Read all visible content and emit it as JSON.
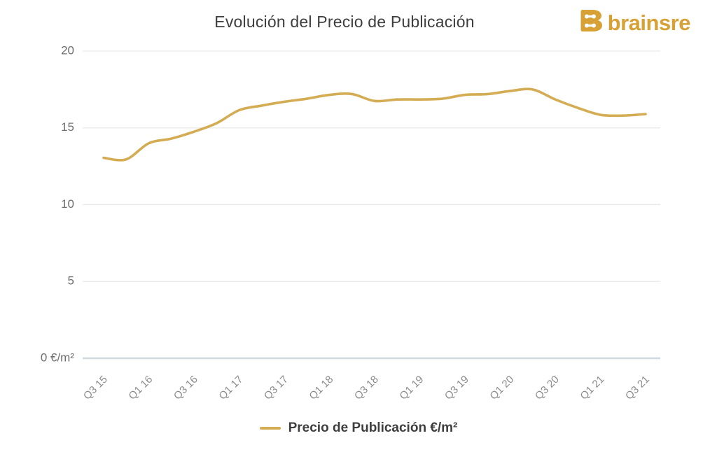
{
  "header": {
    "title": "Evolución del Precio de Publicación",
    "logo": {
      "text": "brainsre",
      "color": "#d7a136",
      "icon": "brainsre-block-b-icon"
    }
  },
  "legend": {
    "label": "Precio de Publicación €/m²",
    "marker_color": "#d3ac54"
  },
  "colors": {
    "line": "#d3ac54",
    "grid": "#e9e9e9",
    "axis_zero": "#cfd9df",
    "y_tick_text": "#6f6f6f",
    "x_tick_text": "#8b8b8b",
    "title_text": "#3e3e3e",
    "brand_gold": "#d7a136"
  },
  "chart_data": {
    "type": "line",
    "title": "Evolución del Precio de Publicación",
    "x": [
      "Q3 15",
      "Q4 15",
      "Q1 16",
      "Q2 16",
      "Q3 16",
      "Q4 16",
      "Q1 17",
      "Q2 17",
      "Q3 17",
      "Q4 17",
      "Q1 18",
      "Q2 18",
      "Q3 18",
      "Q4 18",
      "Q1 19",
      "Q2 19",
      "Q3 19",
      "Q4 19",
      "Q1 20",
      "Q2 20",
      "Q3 20",
      "Q4 20",
      "Q1 21",
      "Q2 21",
      "Q3 21"
    ],
    "x_tick_labels": [
      "Q3 15",
      "Q1 16",
      "Q3 16",
      "Q1 17",
      "Q3 17",
      "Q1 18",
      "Q3 18",
      "Q1 19",
      "Q3 19",
      "Q1 20",
      "Q3 20",
      "Q1 21",
      "Q3 21"
    ],
    "series": [
      {
        "name": "Precio de Publicación €/m²",
        "color": "#d3ac54",
        "values": [
          13.05,
          12.95,
          14.0,
          14.3,
          14.75,
          15.3,
          16.15,
          16.45,
          16.7,
          16.9,
          17.15,
          17.2,
          16.75,
          16.85,
          16.85,
          16.9,
          17.15,
          17.2,
          17.4,
          17.5,
          16.85,
          16.3,
          15.85,
          15.8,
          15.9
        ]
      }
    ],
    "xlabel": "",
    "ylabel": "",
    "ylim": [
      0,
      20
    ],
    "y_ticks": [
      0,
      5,
      10,
      15,
      20
    ],
    "y_tick_labels": [
      "0 €/m²",
      "5",
      "10",
      "15",
      "20"
    ],
    "grid": true,
    "legend_position": "bottom"
  }
}
